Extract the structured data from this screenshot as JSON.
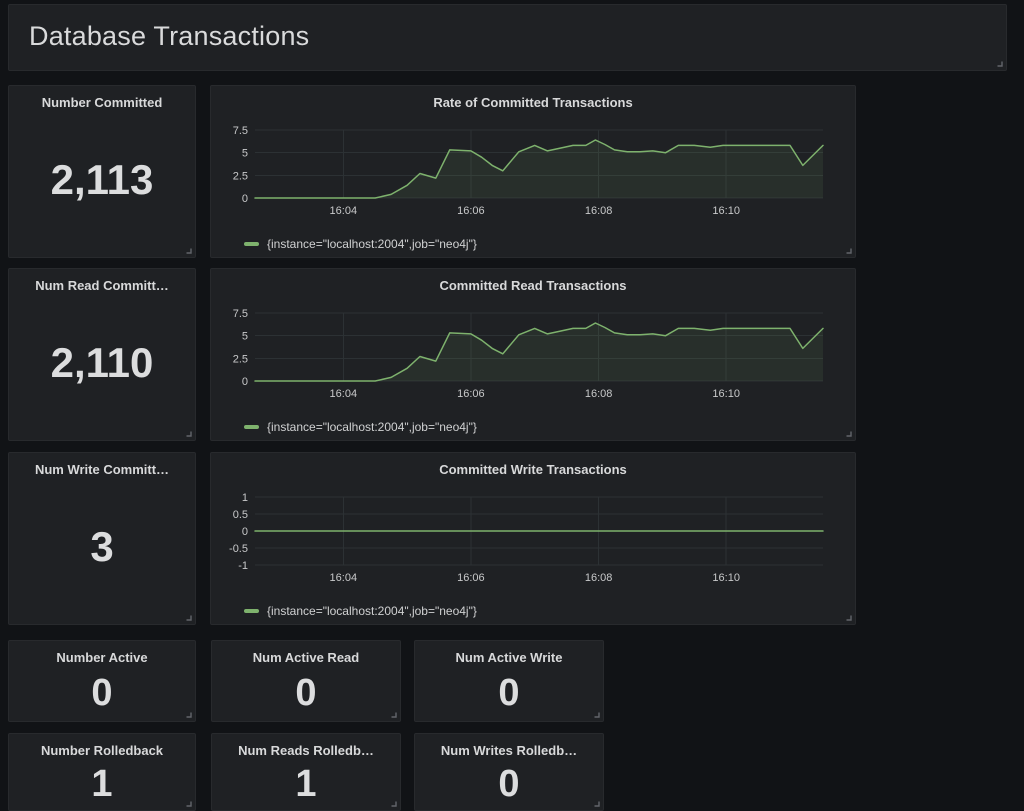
{
  "header": {
    "title": "Database Transactions"
  },
  "colors": {
    "accent_green": "#7eb26d",
    "panel_background": "#1f2124",
    "page_background": "#111316",
    "grid_line": "#2c3134",
    "text_primary": "#d8d9da"
  },
  "stats": [
    {
      "title": "Number Committed",
      "value": "2,113"
    },
    {
      "title": "Num Read Committ…",
      "value": "2,110"
    },
    {
      "title": "Num Write Committ…",
      "value": "3"
    },
    {
      "title": "Number Active",
      "value": "0"
    },
    {
      "title": "Num Active Read",
      "value": "0"
    },
    {
      "title": "Num Active Write",
      "value": "0"
    },
    {
      "title": "Number Rolledback",
      "value": "1"
    },
    {
      "title": "Num Reads Rolledb…",
      "value": "1"
    },
    {
      "title": "Num Writes Rolledb…",
      "value": "0"
    }
  ],
  "icons": {
    "resize_handle": "corner-resize-grip"
  },
  "chart_data": [
    {
      "type": "line",
      "title": "Rate of Committed Transactions",
      "x_range": [
        "16:02:37",
        "16:11:31"
      ],
      "x_ticks": [
        "16:04",
        "16:06",
        "16:08",
        "16:10"
      ],
      "y_ticks": [
        "7.5",
        "5",
        "2.5",
        "0"
      ],
      "ylim": [
        0,
        7.5
      ],
      "grid": true,
      "legend_position": "bottom-left",
      "series": [
        {
          "name": "{instance=\"localhost:2004\",job=\"neo4j\"}",
          "color": "#7eb26d",
          "fill_opacity": 0.1,
          "points": [
            [
              "16:02:37",
              0
            ],
            [
              "16:03:00",
              0
            ],
            [
              "16:03:30",
              0
            ],
            [
              "16:04:00",
              0
            ],
            [
              "16:04:30",
              0
            ],
            [
              "16:04:45",
              0.4
            ],
            [
              "16:05:00",
              1.4
            ],
            [
              "16:05:12",
              2.7
            ],
            [
              "16:05:27",
              2.2
            ],
            [
              "16:05:40",
              5.3
            ],
            [
              "16:06:00",
              5.2
            ],
            [
              "16:06:10",
              4.5
            ],
            [
              "16:06:20",
              3.6
            ],
            [
              "16:06:30",
              3.0
            ],
            [
              "16:06:45",
              5.1
            ],
            [
              "16:07:00",
              5.8
            ],
            [
              "16:07:12",
              5.2
            ],
            [
              "16:07:24",
              5.5
            ],
            [
              "16:07:36",
              5.8
            ],
            [
              "16:07:48",
              5.8
            ],
            [
              "16:07:57",
              6.4
            ],
            [
              "16:08:06",
              5.9
            ],
            [
              "16:08:15",
              5.3
            ],
            [
              "16:08:27",
              5.1
            ],
            [
              "16:08:39",
              5.1
            ],
            [
              "16:08:51",
              5.2
            ],
            [
              "16:09:03",
              5.0
            ],
            [
              "16:09:15",
              5.8
            ],
            [
              "16:09:30",
              5.8
            ],
            [
              "16:09:45",
              5.6
            ],
            [
              "16:09:57",
              5.8
            ],
            [
              "16:10:30",
              5.8
            ],
            [
              "16:11:00",
              5.8
            ],
            [
              "16:11:12",
              3.6
            ],
            [
              "16:11:31",
              5.8
            ]
          ]
        }
      ]
    },
    {
      "type": "line",
      "title": "Committed Read Transactions",
      "x_range": [
        "16:02:37",
        "16:11:31"
      ],
      "x_ticks": [
        "16:04",
        "16:06",
        "16:08",
        "16:10"
      ],
      "y_ticks": [
        "7.5",
        "5",
        "2.5",
        "0"
      ],
      "ylim": [
        0,
        7.5
      ],
      "grid": true,
      "legend_position": "bottom-left",
      "series": [
        {
          "name": "{instance=\"localhost:2004\",job=\"neo4j\"}",
          "color": "#7eb26d",
          "fill_opacity": 0.1,
          "points": [
            [
              "16:02:37",
              0
            ],
            [
              "16:03:00",
              0
            ],
            [
              "16:03:30",
              0
            ],
            [
              "16:04:00",
              0
            ],
            [
              "16:04:30",
              0
            ],
            [
              "16:04:45",
              0.4
            ],
            [
              "16:05:00",
              1.4
            ],
            [
              "16:05:12",
              2.7
            ],
            [
              "16:05:27",
              2.2
            ],
            [
              "16:05:40",
              5.3
            ],
            [
              "16:06:00",
              5.2
            ],
            [
              "16:06:10",
              4.5
            ],
            [
              "16:06:20",
              3.6
            ],
            [
              "16:06:30",
              3.0
            ],
            [
              "16:06:45",
              5.1
            ],
            [
              "16:07:00",
              5.8
            ],
            [
              "16:07:12",
              5.2
            ],
            [
              "16:07:24",
              5.5
            ],
            [
              "16:07:36",
              5.8
            ],
            [
              "16:07:48",
              5.8
            ],
            [
              "16:07:57",
              6.4
            ],
            [
              "16:08:06",
              5.9
            ],
            [
              "16:08:15",
              5.3
            ],
            [
              "16:08:27",
              5.1
            ],
            [
              "16:08:39",
              5.1
            ],
            [
              "16:08:51",
              5.2
            ],
            [
              "16:09:03",
              5.0
            ],
            [
              "16:09:15",
              5.8
            ],
            [
              "16:09:30",
              5.8
            ],
            [
              "16:09:45",
              5.6
            ],
            [
              "16:09:57",
              5.8
            ],
            [
              "16:10:30",
              5.8
            ],
            [
              "16:11:00",
              5.8
            ],
            [
              "16:11:12",
              3.6
            ],
            [
              "16:11:31",
              5.8
            ]
          ]
        }
      ]
    },
    {
      "type": "line",
      "title": "Committed Write Transactions",
      "x_range": [
        "16:02:37",
        "16:11:31"
      ],
      "x_ticks": [
        "16:04",
        "16:06",
        "16:08",
        "16:10"
      ],
      "y_ticks": [
        "1",
        "0.5",
        "0",
        "-0.5",
        "-1"
      ],
      "ylim": [
        -1,
        1
      ],
      "grid": true,
      "legend_position": "bottom-left",
      "series": [
        {
          "name": "{instance=\"localhost:2004\",job=\"neo4j\"}",
          "color": "#7eb26d",
          "fill_opacity": 0.1,
          "points": [
            [
              "16:02:37",
              0
            ],
            [
              "16:11:31",
              0
            ]
          ]
        }
      ]
    }
  ]
}
